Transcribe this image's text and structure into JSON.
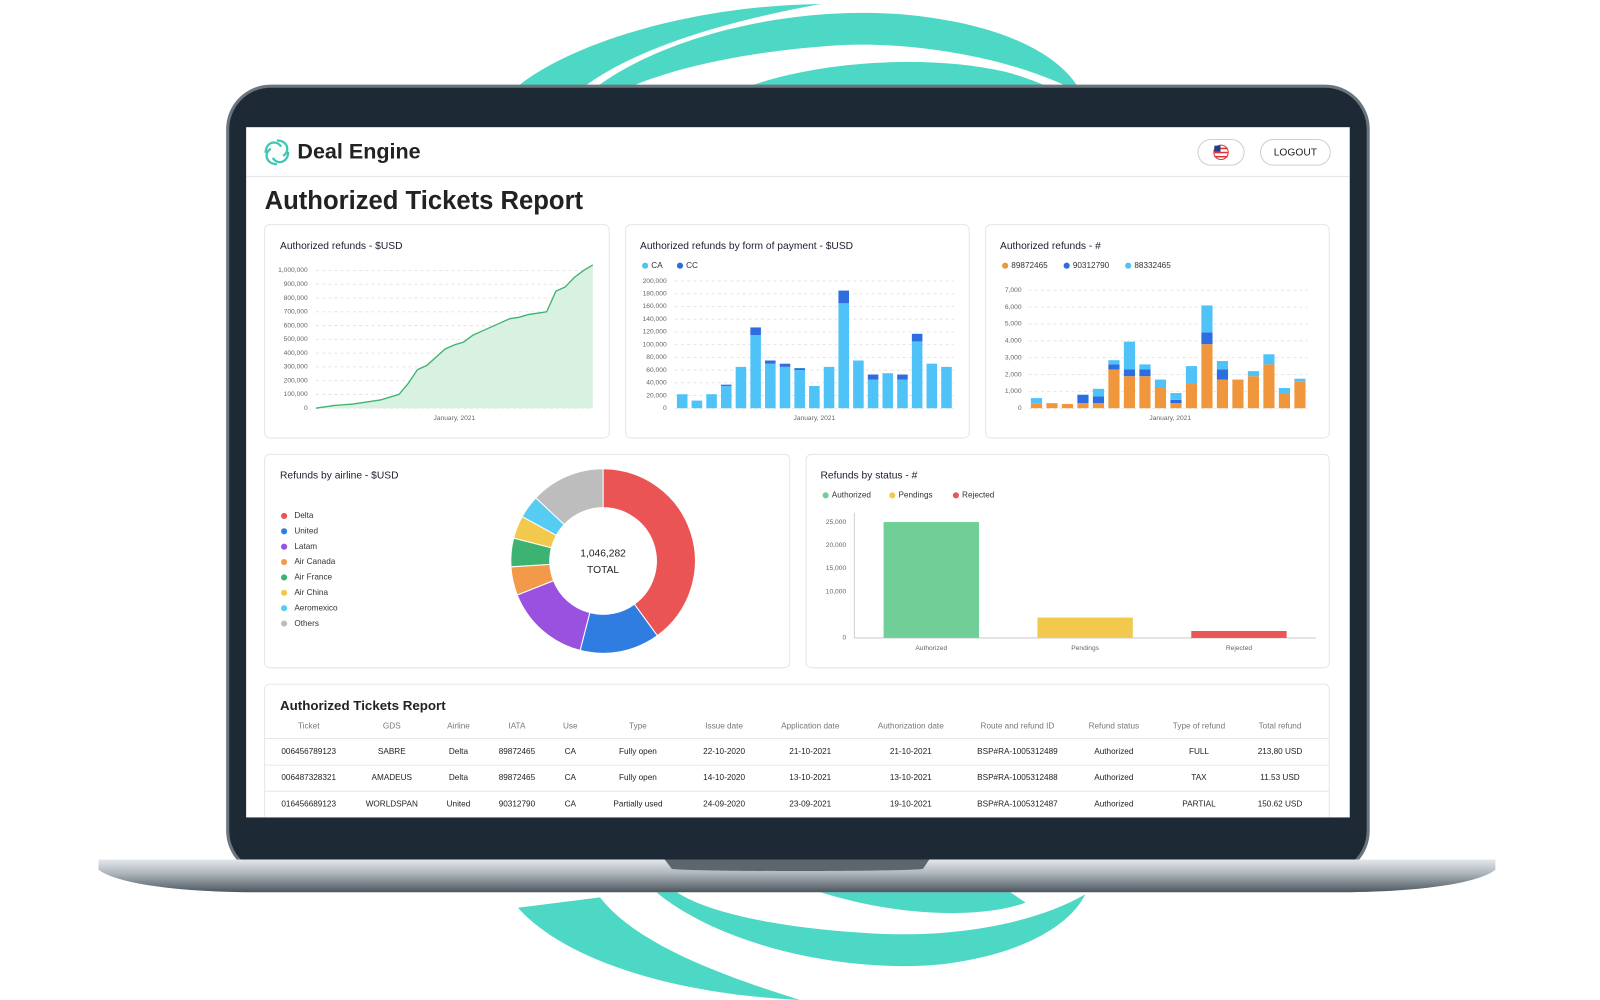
{
  "header": {
    "brand": "Deal Engine",
    "logout": "LOGOUT"
  },
  "page_title": "Authorized Tickets Report",
  "chart_data": [
    {
      "type": "area",
      "title": "Authorized refunds - $USD",
      "xlabel": "January, 2021",
      "color": "#3cb371",
      "fill_color": "#d9f1e1",
      "values": [
        0,
        10000,
        20000,
        25000,
        30000,
        40000,
        50000,
        60000,
        80000,
        100000,
        180000,
        280000,
        310000,
        370000,
        430000,
        460000,
        480000,
        530000,
        560000,
        590000,
        620000,
        650000,
        660000,
        680000,
        690000,
        700000,
        850000,
        880000,
        950000,
        1000000,
        1040000
      ],
      "ylim": [
        0,
        1050000
      ],
      "yticks": [
        0,
        {
          "value": 100000,
          "label": "100,000"
        },
        {
          "value": 200000,
          "label": "200,000"
        },
        {
          "value": 300000,
          "label": "300,000"
        },
        {
          "value": 400000,
          "label": "400,000"
        },
        {
          "value": 500000,
          "label": "500,000"
        },
        {
          "value": 600000,
          "label": "600,000"
        },
        {
          "value": 700000,
          "label": "700,000"
        },
        {
          "value": 800000,
          "label": "800,000"
        },
        {
          "value": 900000,
          "label": "900,000"
        },
        {
          "value": 1000000,
          "label": "1,000,000"
        }
      ],
      "grid": true
    },
    {
      "type": "bar",
      "stacked": true,
      "title": "Authorized refunds by form of payment - $USD",
      "xlabel": "January, 2021",
      "series": [
        {
          "name": "CA",
          "color": "#4fc3f7",
          "values": [
            22000,
            12000,
            22000,
            35000,
            65000,
            115000,
            70000,
            65000,
            60000,
            35000,
            65000,
            165000,
            75000,
            45000,
            55000,
            45000,
            105000,
            70000,
            65000
          ]
        },
        {
          "name": "CC",
          "color": "#2d6de0",
          "values": [
            0,
            0,
            0,
            2000,
            0,
            12000,
            5000,
            5000,
            3000,
            0,
            0,
            20000,
            0,
            8000,
            0,
            8000,
            12000,
            0,
            0
          ]
        }
      ],
      "ylim": [
        0,
        200000
      ],
      "yticks": [
        0,
        {
          "value": 20000,
          "label": "20,000"
        },
        {
          "value": 40000,
          "label": "40,000"
        },
        {
          "value": 60000,
          "label": "60,000"
        },
        {
          "value": 80000,
          "label": "80,000"
        },
        {
          "value": 100000,
          "label": "100,000"
        },
        {
          "value": 120000,
          "label": "120,000"
        },
        {
          "value": 140000,
          "label": "140,000"
        },
        {
          "value": 160000,
          "label": "160,000"
        },
        {
          "value": 180000,
          "label": "180,000"
        },
        {
          "value": 200000,
          "label": "200,000"
        }
      ],
      "grid": true
    },
    {
      "type": "bar",
      "stacked": true,
      "title": "Authorized refunds - #",
      "xlabel": "January, 2021",
      "series": [
        {
          "name": "89872465",
          "color": "#f0963c",
          "values": [
            300,
            300,
            250,
            300,
            300,
            2300,
            1900,
            1900,
            1200,
            300,
            1500,
            3800,
            1700,
            1700,
            1900,
            2600,
            900,
            1600
          ]
        },
        {
          "name": "90312790",
          "color": "#2d6de0",
          "values": [
            0,
            0,
            0,
            500,
            400,
            300,
            400,
            400,
            0,
            200,
            0,
            700,
            600,
            0,
            0,
            0,
            0,
            0
          ]
        },
        {
          "name": "88332465",
          "color": "#4fc3f7",
          "values": [
            300,
            0,
            0,
            0,
            450,
            250,
            1650,
            300,
            500,
            400,
            1000,
            1600,
            500,
            0,
            300,
            600,
            300,
            150
          ]
        }
      ],
      "ylim": [
        0,
        7000
      ],
      "yticks": [
        0,
        {
          "value": 1000,
          "label": "1,000"
        },
        {
          "value": 2000,
          "label": "2,000"
        },
        {
          "value": 3000,
          "label": "3,000"
        },
        {
          "value": 4000,
          "label": "4,000"
        },
        {
          "value": 5000,
          "label": "5,000"
        },
        {
          "value": 6000,
          "label": "6,000"
        },
        {
          "value": 7000,
          "label": "7,000"
        }
      ],
      "grid": true
    },
    {
      "type": "pie",
      "donut": true,
      "title": "Refunds by airline - $USD",
      "categories": [
        "Delta",
        "United",
        "Latam",
        "Air Canada",
        "Air France",
        "Air China",
        "Aeromexico",
        "Others"
      ],
      "values": [
        40,
        14,
        15,
        5,
        5,
        4,
        4,
        13
      ],
      "colors": [
        "#ea5455",
        "#2f7de1",
        "#9b51e0",
        "#f2994a",
        "#3cb371",
        "#f2c94c",
        "#56ccf2",
        "#bdbdbd"
      ],
      "center_value": {
        "value": 1046282,
        "label": "1,046,282"
      },
      "center_label": "TOTAL"
    },
    {
      "type": "bar",
      "title": "Refunds by status - #",
      "categories": [
        "Authorized",
        "Pendings",
        "Rejected"
      ],
      "values": [
        25000,
        4400,
        1500
      ],
      "colors": [
        "#6fcf97",
        "#f2c94c",
        "#eb5757"
      ],
      "ylim": [
        0,
        25000
      ],
      "yticks": [
        0,
        {
          "value": 10000,
          "label": "10,000"
        },
        {
          "value": 15000,
          "label": "15,000"
        },
        {
          "value": 20000,
          "label": "20,000"
        },
        {
          "value": 25000,
          "label": "25,000"
        }
      ],
      "grid": false
    }
  ],
  "table": {
    "title": "Authorized Tickets Report",
    "columns": [
      "Ticket",
      "GDS",
      "Airline",
      "IATA",
      "Use",
      "Type",
      "Issue date",
      "Application date",
      "Authorization date",
      "Route and refund ID",
      "Refund status",
      "Type of refund",
      "Total refund"
    ],
    "rows": [
      [
        "006456789123",
        "SABRE",
        "Delta",
        "89872465",
        "CA",
        "Fully open",
        "22-10-2020",
        "21-10-2021",
        "21-10-2021",
        "BSP#RA-1005312489",
        "Authorized",
        "FULL",
        "213,80 USD"
      ],
      [
        "006487328321",
        "AMADEUS",
        "Delta",
        "89872465",
        "CA",
        "Fully open",
        "14-10-2020",
        "13-10-2021",
        "13-10-2021",
        "BSP#RA-1005312488",
        "Authorized",
        "TAX",
        "11.53 USD"
      ],
      [
        "016456689123",
        "WORLDSPAN",
        "United",
        "90312790",
        "CA",
        "Partially used",
        "24-09-2020",
        "23-09-2021",
        "19-10-2021",
        "BSP#RA-1005312487",
        "Authorized",
        "PARTIAL",
        "150.62 USD"
      ]
    ]
  }
}
